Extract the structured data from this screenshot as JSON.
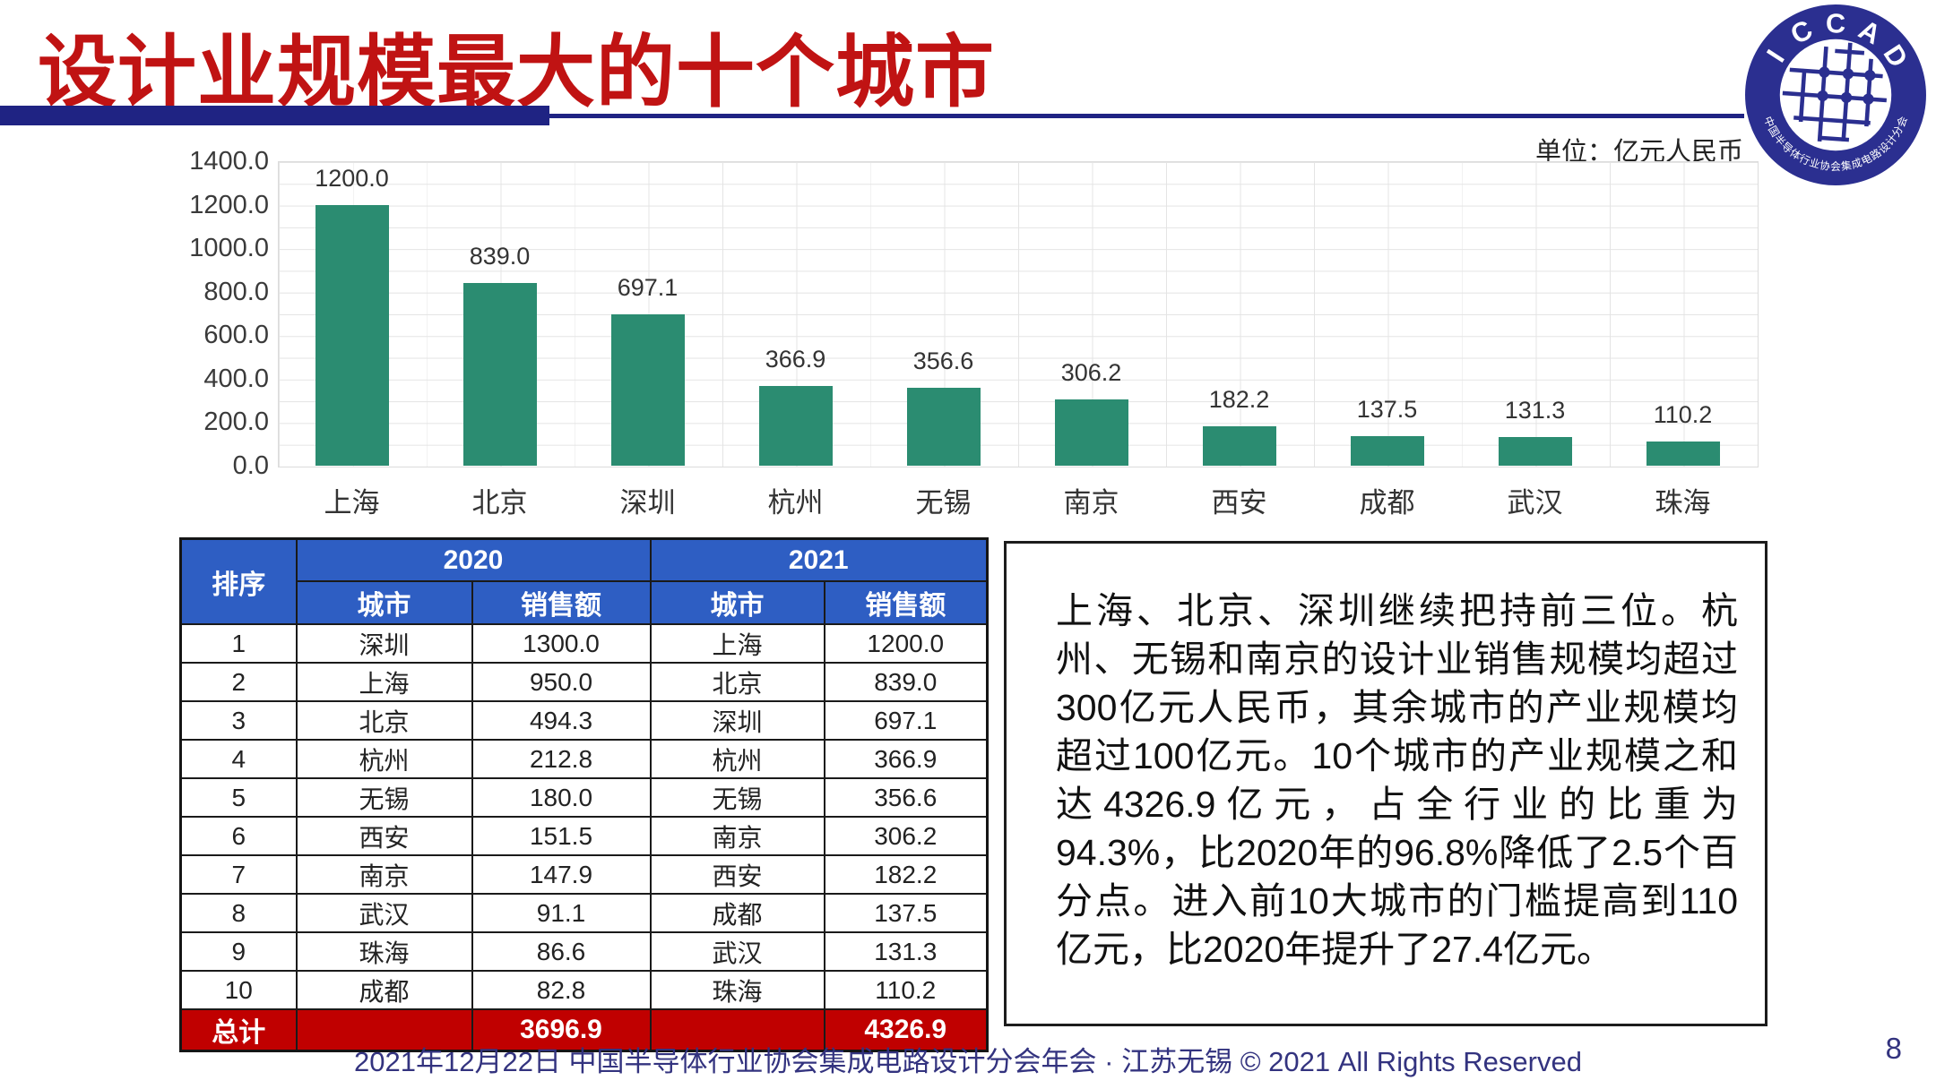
{
  "slide": {
    "title": "设计业规模最大的十个城市",
    "unit_label": "单位：亿元人民币",
    "footer_text": "2021年12月22日 中国半导体行业协会集成电路设计分会年会 · 江苏无锡 © 2021 All Rights Reserved",
    "page_number": "8"
  },
  "logo": {
    "top_text": "ICCAD",
    "bottom_text": "中国半导体行业协会集成电路设计分会"
  },
  "chart_data": {
    "type": "bar",
    "title": "",
    "unit": "亿元人民币",
    "categories": [
      "上海",
      "北京",
      "深圳",
      "杭州",
      "无锡",
      "南京",
      "西安",
      "成都",
      "武汉",
      "珠海"
    ],
    "values": [
      1200.0,
      839.0,
      697.1,
      366.9,
      356.6,
      306.2,
      182.2,
      137.5,
      131.3,
      110.2
    ],
    "bar_labels": [
      "1200.0",
      "839.0",
      "697.1",
      "366.9",
      "356.6",
      "306.2",
      "182.2",
      "137.5",
      "131.3",
      "110.2"
    ],
    "ylim": [
      0,
      1400
    ],
    "y_ticks": [
      "0.0",
      "200.0",
      "400.0",
      "600.0",
      "800.0",
      "1000.0",
      "1200.0",
      "1400.0"
    ],
    "grid": "horizontal-and-vertical-minor",
    "legend": "none"
  },
  "table": {
    "rank_header": "排序",
    "year_2020": "2020",
    "year_2021": "2021",
    "sub_headers": [
      "城市",
      "销售额",
      "城市",
      "销售额"
    ],
    "rows": [
      [
        "1",
        "深圳",
        "1300.0",
        "上海",
        "1200.0"
      ],
      [
        "2",
        "上海",
        "950.0",
        "北京",
        "839.0"
      ],
      [
        "3",
        "北京",
        "494.3",
        "深圳",
        "697.1"
      ],
      [
        "4",
        "杭州",
        "212.8",
        "杭州",
        "366.9"
      ],
      [
        "5",
        "无锡",
        "180.0",
        "无锡",
        "356.6"
      ],
      [
        "6",
        "西安",
        "151.5",
        "南京",
        "306.2"
      ],
      [
        "7",
        "南京",
        "147.9",
        "西安",
        "182.2"
      ],
      [
        "8",
        "武汉",
        "91.1",
        "成都",
        "137.5"
      ],
      [
        "9",
        "珠海",
        "86.6",
        "武汉",
        "131.3"
      ],
      [
        "10",
        "成都",
        "82.8",
        "珠海",
        "110.2"
      ]
    ],
    "total_row": [
      "总计",
      "",
      "3696.9",
      "",
      "4326.9"
    ]
  },
  "analysis_text": "上海、北京、深圳继续把持前三位。杭州、无锡和南京的设计业销售规模均超过300亿元人民币，其余城市的产业规模均超过100亿元。10个城市的产业规模之和达4326.9亿元，占全行业的比重为94.3%，比2020年的96.8%降低了2.5个百分点。进入前10大城市的门槛提高到110亿元，比2020年提升了27.4亿元。",
  "colors": {
    "title_red": "#c01313",
    "navy": "#1f2383",
    "logo_navy": "#2b2f90",
    "bar_teal": "#2b8c71",
    "header_blue": "#2e5ec3",
    "total_red": "#c00000",
    "footer_navy": "#33337f",
    "grid_gray": "#e4e4e4"
  }
}
